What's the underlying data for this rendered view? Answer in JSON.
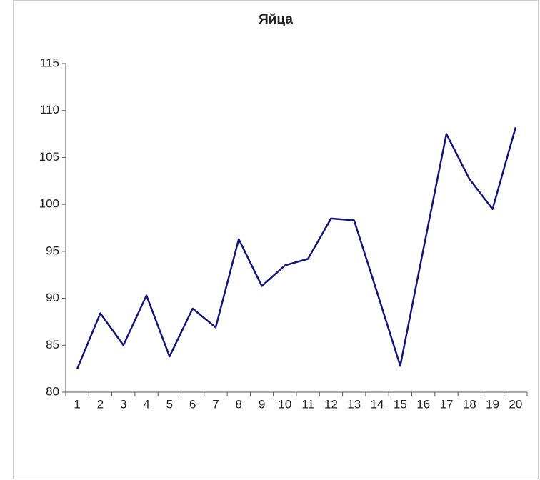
{
  "chart_data": {
    "type": "line",
    "title": "Яйца",
    "categories": [
      "1",
      "2",
      "3",
      "4",
      "5",
      "6",
      "7",
      "8",
      "9",
      "10",
      "11",
      "12",
      "13",
      "14",
      "15",
      "16",
      "17",
      "18",
      "19",
      "20"
    ],
    "series": [
      {
        "name": "Яйца",
        "color": "#14147a",
        "values": [
          82.5,
          88.4,
          85.0,
          90.3,
          83.8,
          88.9,
          86.9,
          96.3,
          91.3,
          93.5,
          94.2,
          98.5,
          98.3,
          90.6,
          82.8,
          95.2,
          107.5,
          102.7,
          99.5,
          108.2
        ]
      }
    ],
    "ylim": [
      80,
      115
    ],
    "yticks": [
      80,
      85,
      90,
      95,
      100,
      105,
      110,
      115
    ],
    "grid": false
  }
}
